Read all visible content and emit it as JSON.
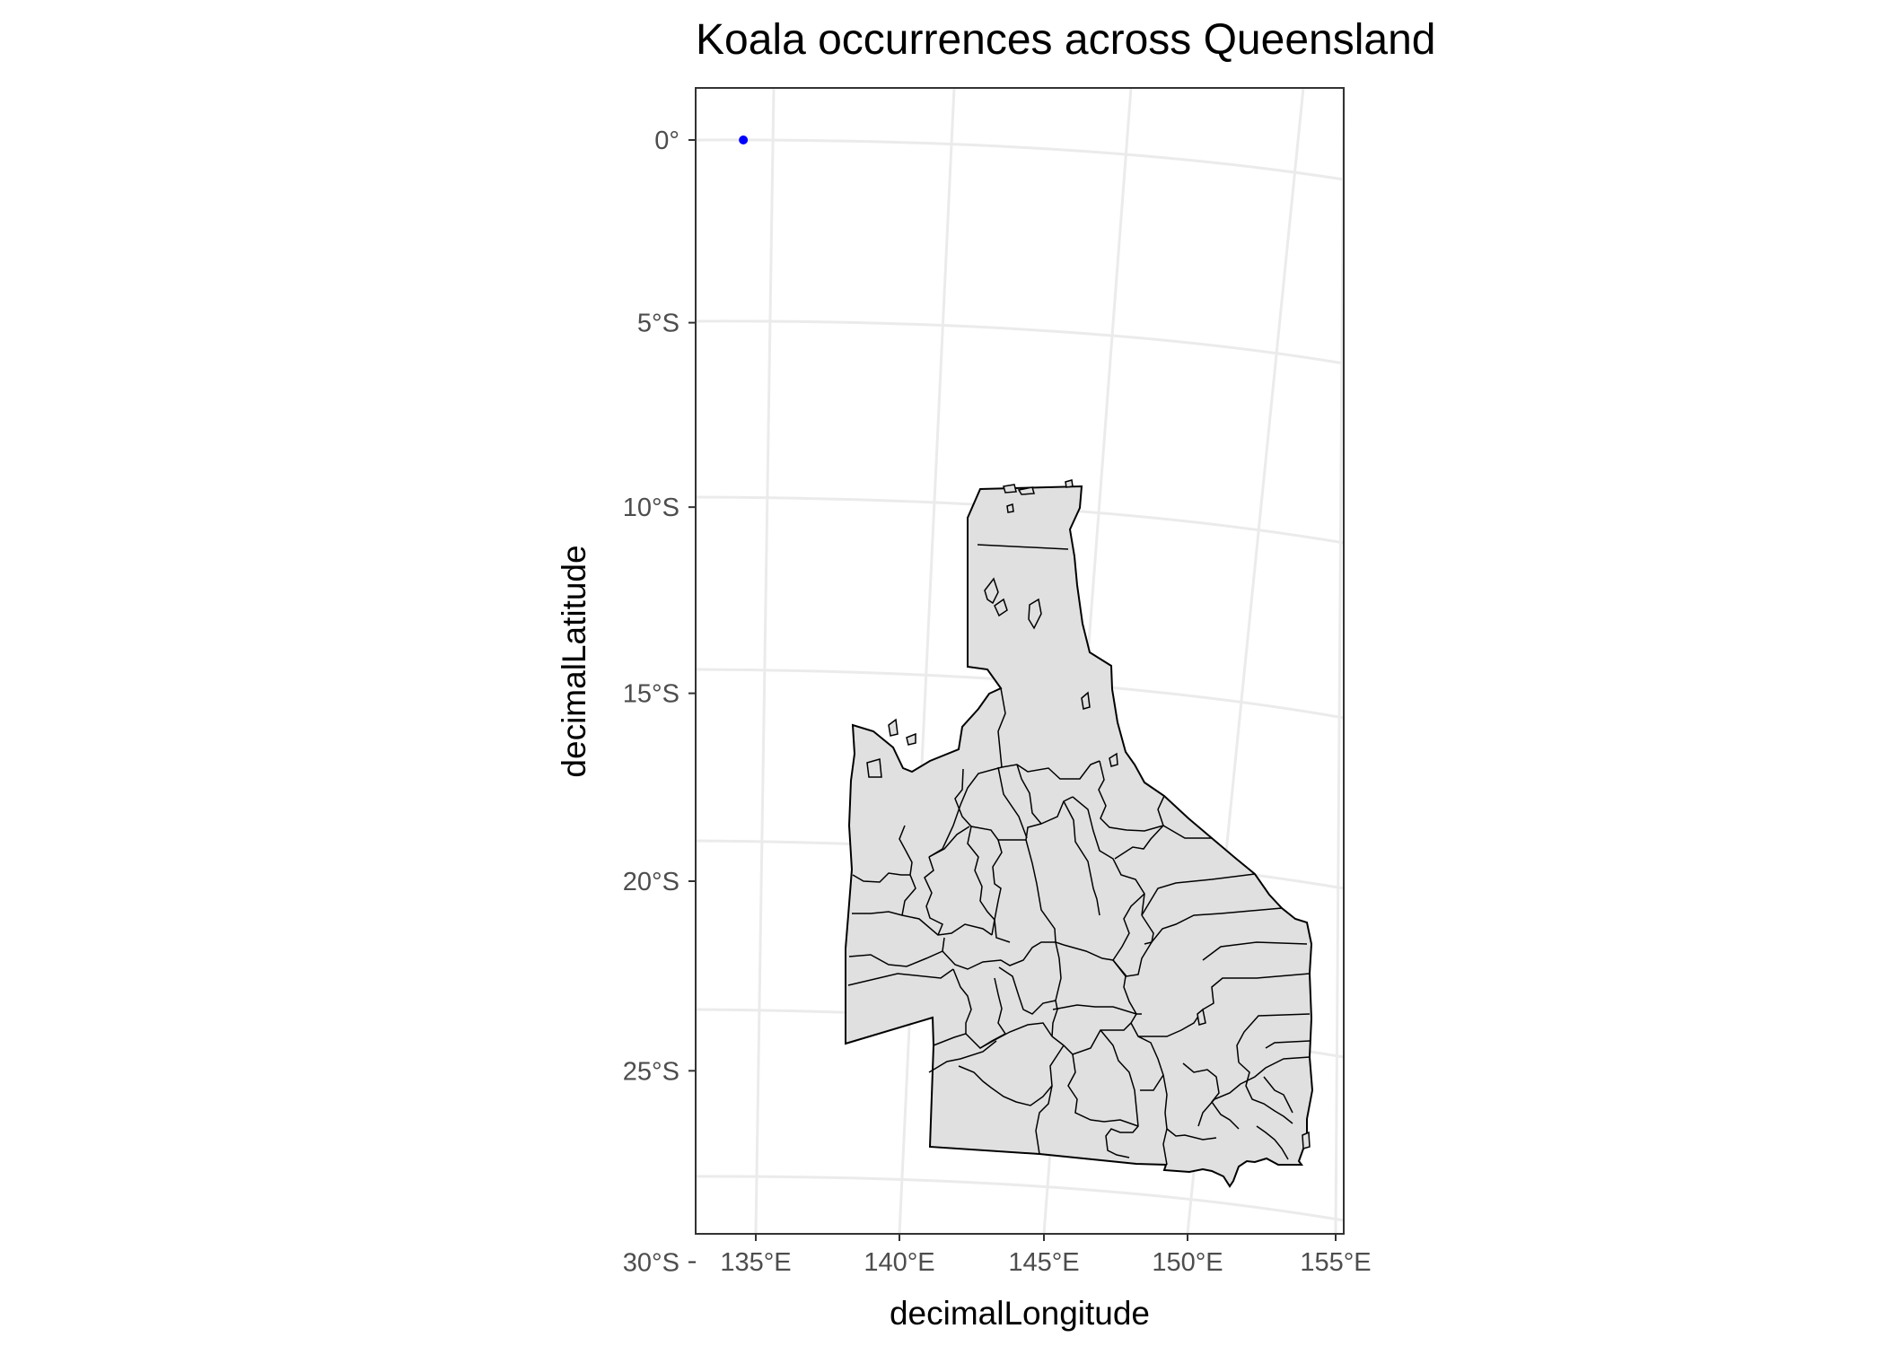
{
  "title": "Koala occurrences across Queensland",
  "xlabel": "decimalLongitude",
  "ylabel": "decimalLatitude",
  "x_ticks": [
    {
      "value": 135,
      "label": "135°E"
    },
    {
      "value": 140,
      "label": "140°E"
    },
    {
      "value": 145,
      "label": "145°E"
    },
    {
      "value": 150,
      "label": "150°E"
    },
    {
      "value": 155,
      "label": "155°E"
    }
  ],
  "y_ticks": [
    {
      "value": 0,
      "label": "0°"
    },
    {
      "value": -5,
      "label": "5°S"
    },
    {
      "value": -10,
      "label": "10°S"
    },
    {
      "value": -15,
      "label": "15°S"
    },
    {
      "value": -20,
      "label": "20°S"
    },
    {
      "value": -25,
      "label": "25°S"
    },
    {
      "value": -30,
      "label": "30°S"
    }
  ],
  "chart_data": {
    "type": "scatter",
    "map": "Queensland local government areas",
    "title": "Koala occurrences across Queensland",
    "xlabel": "decimalLongitude",
    "ylabel": "decimalLatitude",
    "xlim": [
      133,
      155.2
    ],
    "ylim": [
      -31.6,
      1.5
    ],
    "grid": true,
    "points": [
      {
        "lon": 134.0,
        "lat": 0.0
      }
    ]
  },
  "colors": {
    "point": "#0000ff",
    "land_fill": "#e0e0e0",
    "border": "#000000",
    "grid": "#ebebeb",
    "panel_border": "#333333"
  }
}
